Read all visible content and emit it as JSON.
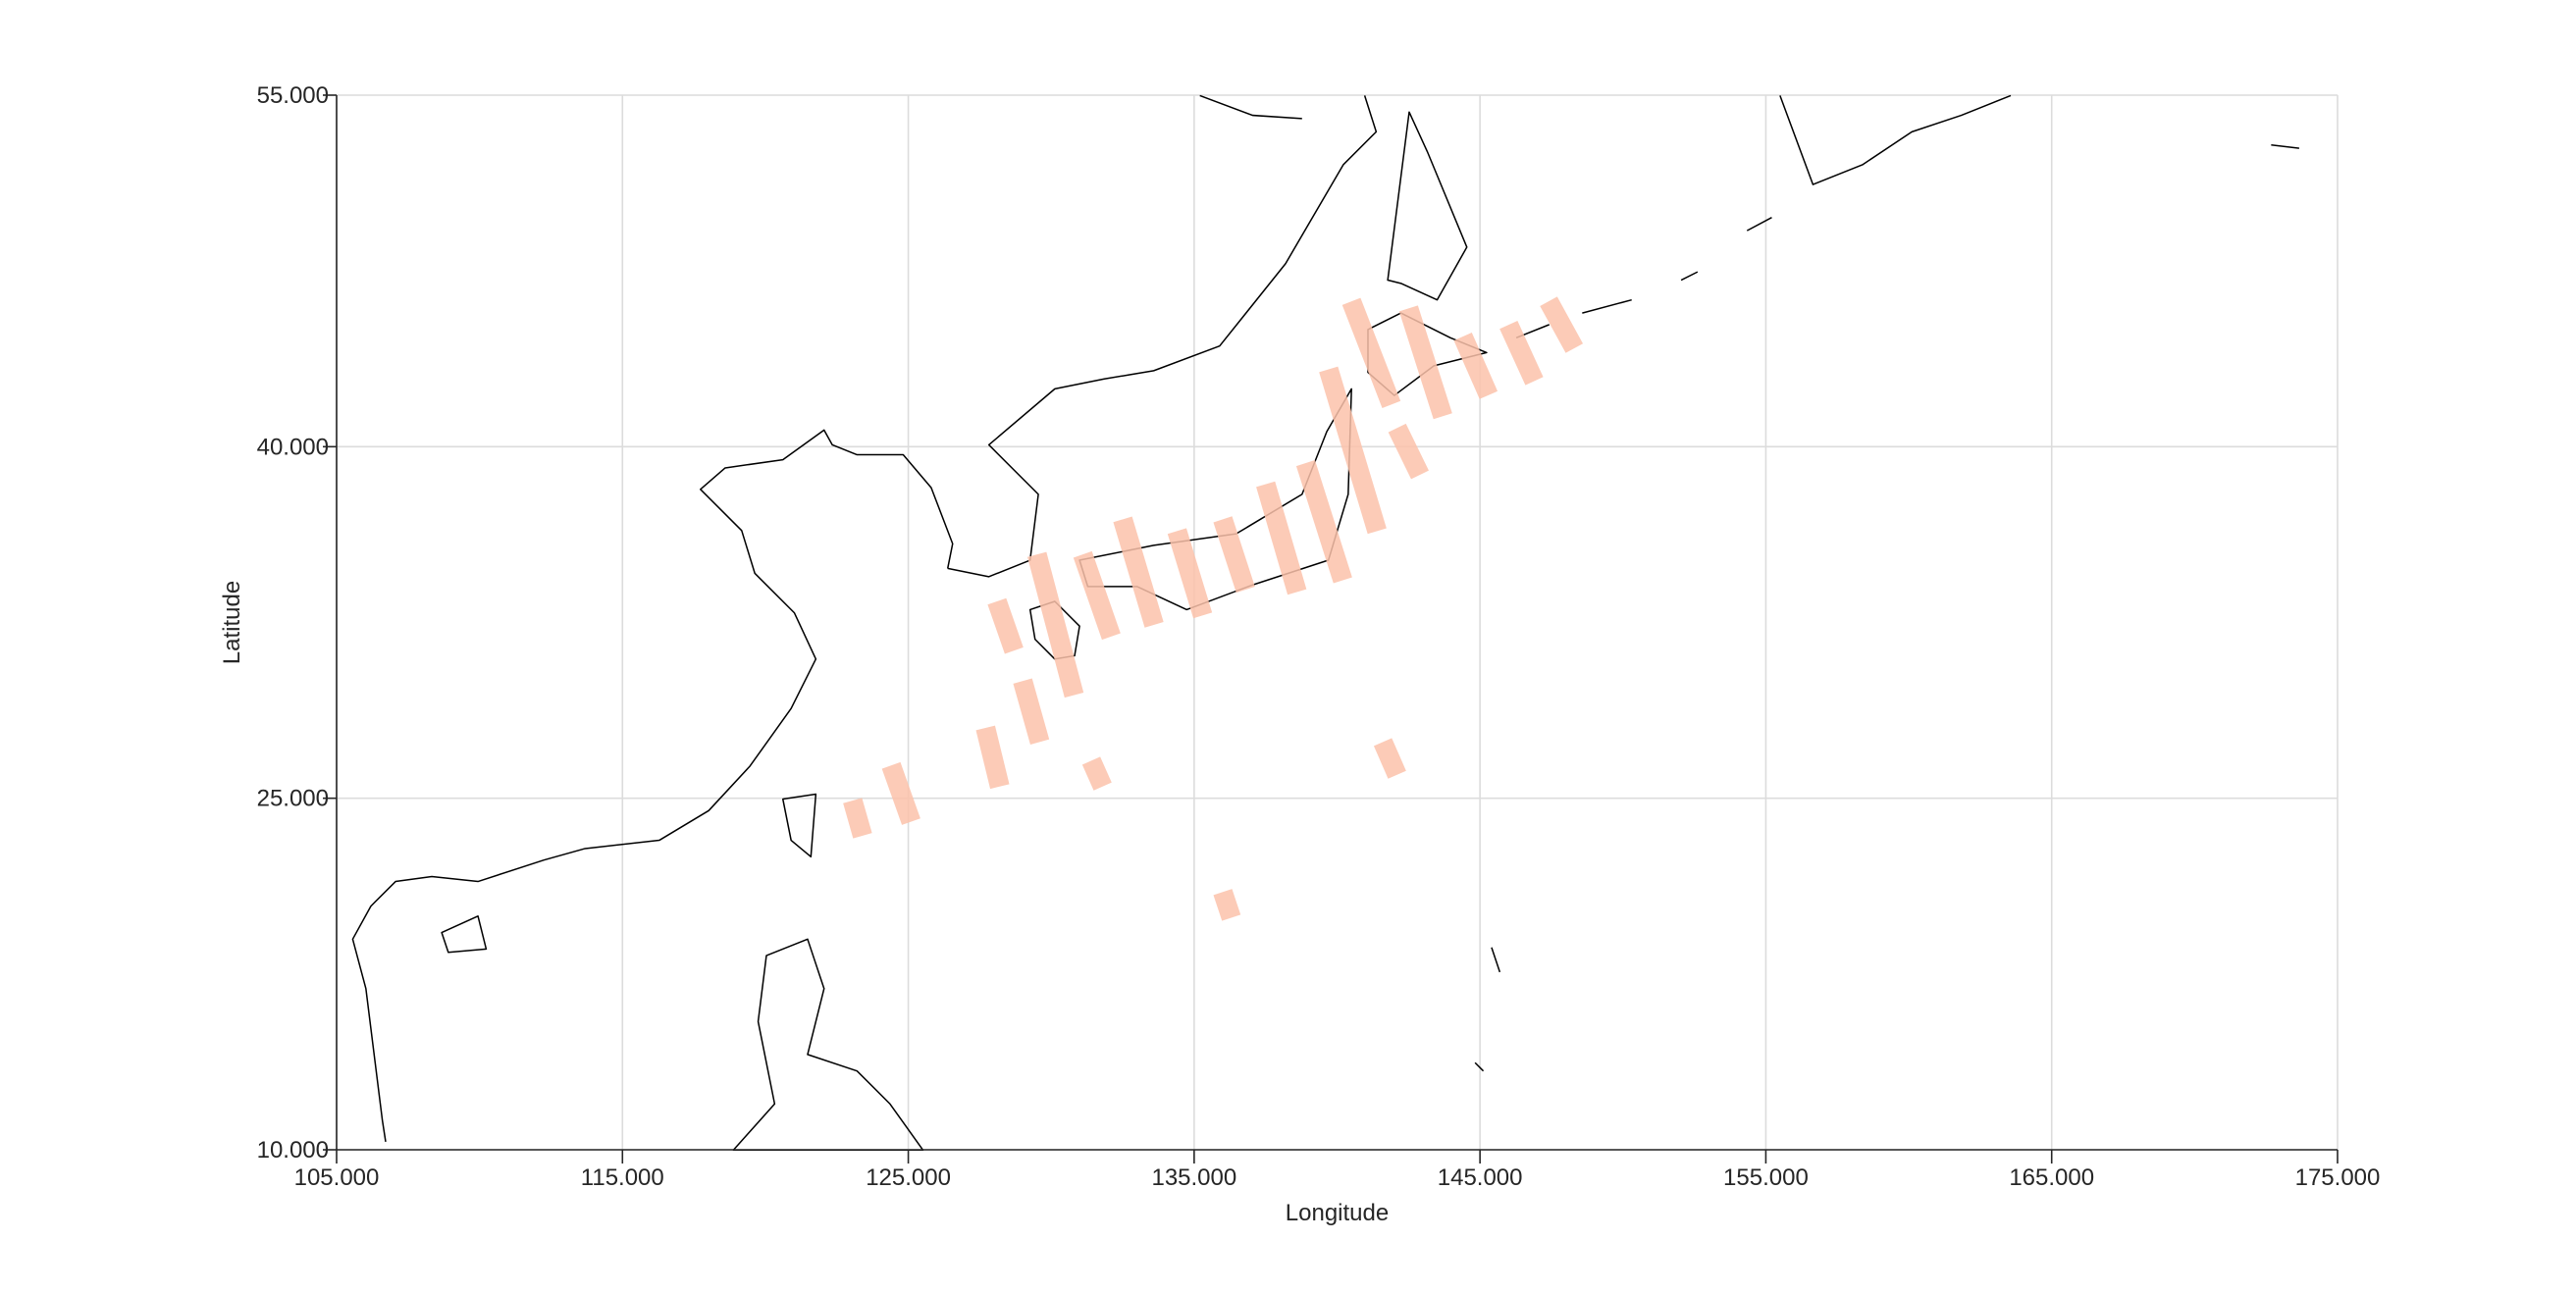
{
  "chart_data": {
    "type": "map",
    "x_label": "Longitude",
    "y_label": "Latitude",
    "xlim": [
      105,
      175
    ],
    "ylim": [
      10,
      55
    ],
    "xticks": [
      {
        "value": 105,
        "label": "105.000"
      },
      {
        "value": 115,
        "label": "115.000"
      },
      {
        "value": 125,
        "label": "125.000"
      },
      {
        "value": 135,
        "label": "135.000"
      },
      {
        "value": 145,
        "label": "145.000"
      },
      {
        "value": 155,
        "label": "155.000"
      },
      {
        "value": 165,
        "label": "165.000"
      },
      {
        "value": 175,
        "label": "175.000"
      }
    ],
    "yticks": [
      {
        "value": 10,
        "label": "10.000"
      },
      {
        "value": 25,
        "label": "25.000"
      },
      {
        "value": 40,
        "label": "40.000"
      },
      {
        "value": 55,
        "label": "55.000"
      }
    ],
    "grid": true,
    "swath_color": "#fbc2aa",
    "swaths": [
      {
        "x": [
          123.05,
          123.4
        ],
        "y": [
          24.9,
          23.4
        ]
      },
      {
        "x": [
          124.4,
          125.1
        ],
        "y": [
          26.4,
          24.0
        ]
      },
      {
        "x": [
          127.7,
          128.2
        ],
        "y": [
          28.0,
          25.5
        ]
      },
      {
        "x": [
          129.0,
          129.6
        ],
        "y": [
          30.0,
          27.4
        ]
      },
      {
        "x": [
          128.1,
          128.7
        ],
        "y": [
          33.4,
          31.3
        ]
      },
      {
        "x": [
          129.5,
          130.8
        ],
        "y": [
          35.4,
          29.4
        ]
      },
      {
        "x": [
          131.4,
          131.8
        ],
        "y": [
          26.6,
          25.5
        ]
      },
      {
        "x": [
          131.1,
          132.1
        ],
        "y": [
          35.4,
          31.9
        ]
      },
      {
        "x": [
          132.5,
          133.6
        ],
        "y": [
          36.9,
          32.4
        ]
      },
      {
        "x": [
          134.4,
          135.3
        ],
        "y": [
          36.4,
          32.8
        ]
      },
      {
        "x": [
          136.0,
          136.8
        ],
        "y": [
          36.9,
          33.9
        ]
      },
      {
        "x": [
          136.0,
          136.3
        ],
        "y": [
          21.0,
          19.9
        ]
      },
      {
        "x": [
          137.5,
          138.6
        ],
        "y": [
          38.4,
          33.8
        ]
      },
      {
        "x": [
          138.9,
          140.2
        ],
        "y": [
          39.3,
          34.3
        ]
      },
      {
        "x": [
          139.7,
          141.4
        ],
        "y": [
          43.3,
          36.4
        ]
      },
      {
        "x": [
          140.5,
          141.9
        ],
        "y": [
          46.2,
          41.8
        ]
      },
      {
        "x": [
          142.1,
          142.9
        ],
        "y": [
          40.8,
          38.8
        ]
      },
      {
        "x": [
          142.5,
          143.7
        ],
        "y": [
          45.9,
          41.3
        ]
      },
      {
        "x": [
          141.6,
          142.1
        ],
        "y": [
          27.4,
          26.0
        ]
      },
      {
        "x": [
          144.4,
          145.3
        ],
        "y": [
          44.7,
          42.2
        ]
      },
      {
        "x": [
          146.0,
          146.9
        ],
        "y": [
          45.2,
          42.8
        ]
      },
      {
        "x": [
          147.4,
          148.3
        ],
        "y": [
          46.2,
          44.2
        ]
      }
    ]
  }
}
